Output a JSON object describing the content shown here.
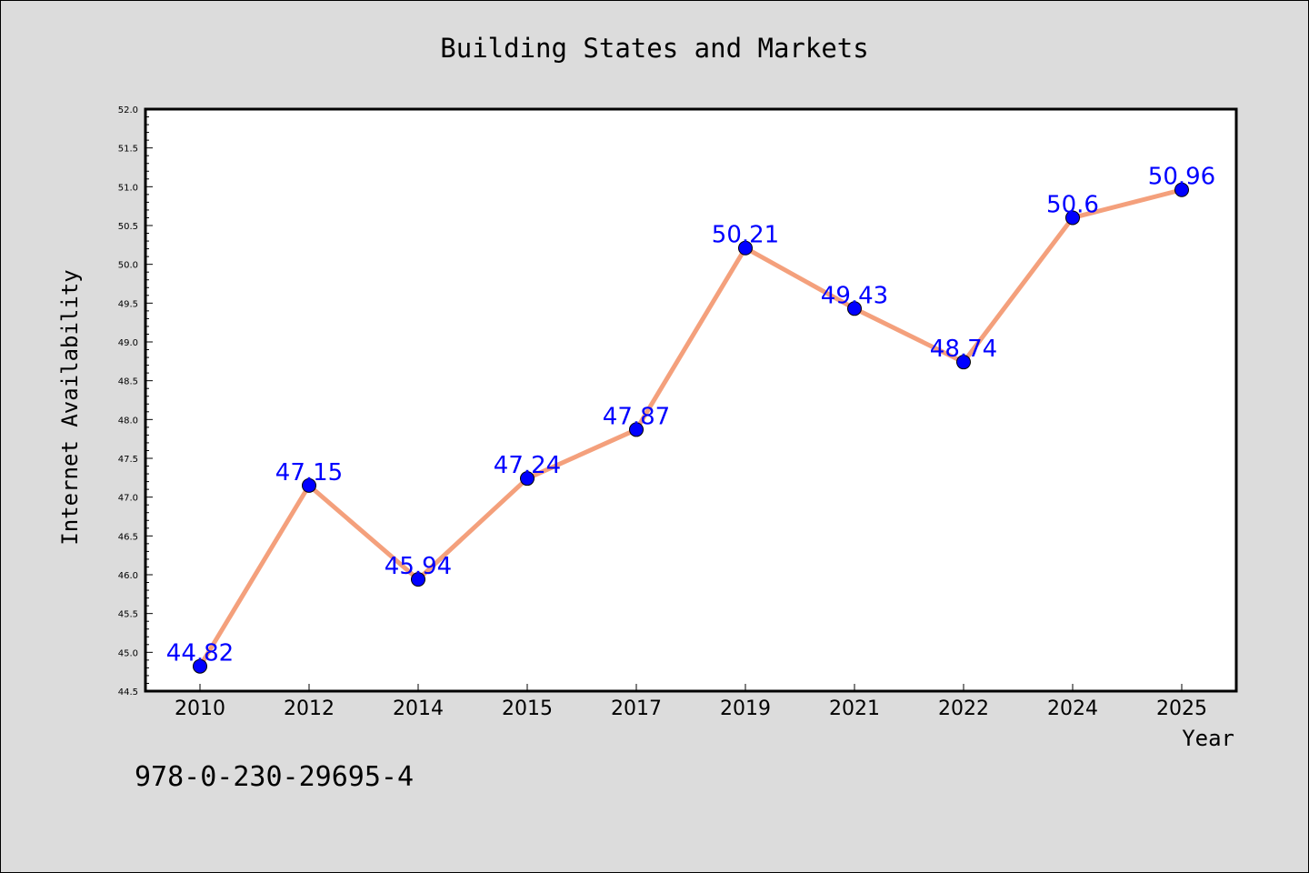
{
  "chart_data": {
    "type": "line",
    "title": "Building States and Markets",
    "xlabel": "Year",
    "ylabel": "Internet Availability",
    "categories": [
      "2010",
      "2012",
      "2014",
      "2015",
      "2017",
      "2019",
      "2021",
      "2022",
      "2024",
      "2025"
    ],
    "values": [
      44.82,
      47.15,
      45.94,
      47.24,
      47.87,
      50.21,
      49.43,
      48.74,
      50.6,
      50.96
    ],
    "data_labels": [
      "44.82",
      "47.15",
      "45.94",
      "47.24",
      "47.87",
      "50.21",
      "49.43",
      "48.74",
      "50.6",
      "50.96"
    ],
    "ylim": [
      44.5,
      52.0
    ],
    "yticks": [
      "44.5",
      "45.0",
      "45.5",
      "46.0",
      "46.5",
      "47.0",
      "47.5",
      "48.0",
      "48.5",
      "49.0",
      "49.5",
      "50.0",
      "50.5",
      "51.0",
      "51.5",
      "52.0"
    ],
    "grid": false,
    "colors": {
      "line": "#f4a07c",
      "marker": "#0000ff",
      "label": "#0000ff",
      "background": "#dcdcdc",
      "plot_background": "#ffffff"
    }
  },
  "footer": {
    "identifier": "978-0-230-29695-4"
  }
}
